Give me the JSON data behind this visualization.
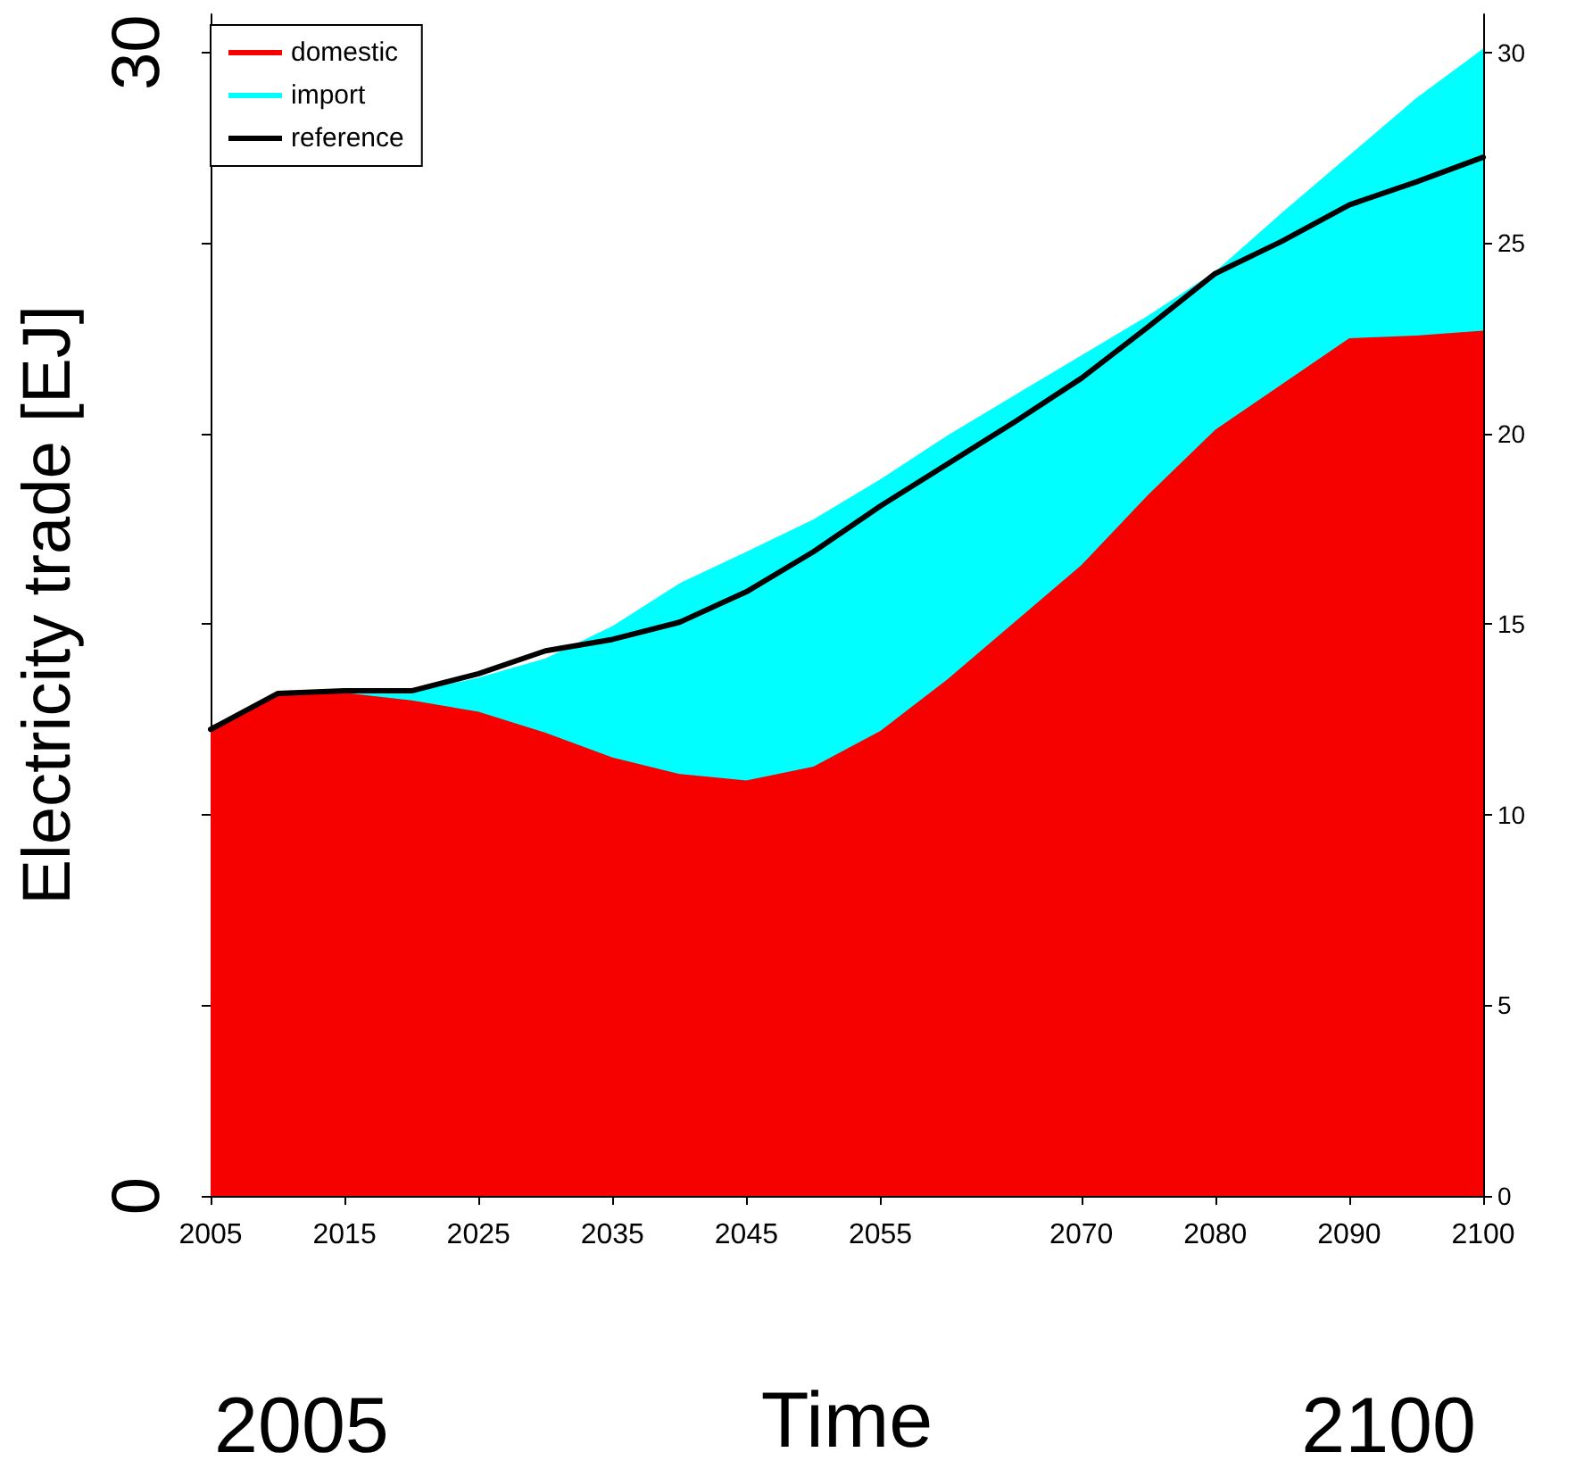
{
  "chart_data": {
    "type": "area",
    "stacked": true,
    "xlabel": "Time",
    "ylabel": "Electricity trade [EJ]",
    "x": [
      2005,
      2010,
      2015,
      2020,
      2025,
      2030,
      2035,
      2040,
      2045,
      2050,
      2055,
      2060,
      2065,
      2070,
      2075,
      2080,
      2085,
      2090,
      2095,
      2100
    ],
    "series": [
      {
        "name": "domestic",
        "color": "#f70000",
        "values": [
          12.24,
          13.18,
          13.2,
          13.0,
          12.7,
          12.15,
          11.5,
          11.07,
          10.9,
          11.26,
          12.2,
          13.55,
          15.05,
          16.55,
          18.4,
          20.1,
          21.3,
          22.5,
          22.57,
          22.7
        ]
      },
      {
        "name": "import",
        "color": "#00ffff",
        "values": [
          0,
          0,
          0,
          0.2,
          0.9,
          1.95,
          3.45,
          5.0,
          6.0,
          6.49,
          6.6,
          6.4,
          5.95,
          5.5,
          4.7,
          4.15,
          4.5,
          4.8,
          6.23,
          7.4
        ]
      },
      {
        "name": "reference",
        "type": "line",
        "color": "#000000",
        "values": [
          12.24,
          13.18,
          13.25,
          13.25,
          13.7,
          14.3,
          14.6,
          15.05,
          15.85,
          16.9,
          18.1,
          19.2,
          20.3,
          21.45,
          22.8,
          24.2,
          25.05,
          26.0,
          26.6,
          27.25
        ]
      }
    ],
    "xlim": [
      2005,
      2100
    ],
    "xticks": [
      2005,
      2015,
      2025,
      2035,
      2045,
      2055,
      2070,
      2080,
      2090,
      2100
    ],
    "ylim": [
      0,
      31
    ],
    "yticks": [
      0,
      {
        "value": 5,
        "label": null
      },
      {
        "value": 10,
        "label": null
      },
      {
        "value": 15,
        "label": null
      },
      {
        "value": 20,
        "label": null
      },
      {
        "value": 25,
        "label": null
      },
      30
    ],
    "y2lim": [
      0,
      31
    ],
    "y2ticks": [
      0,
      5,
      10,
      15,
      20,
      25,
      30
    ],
    "annotations": [
      "2005",
      "2100"
    ],
    "legend": "top left",
    "grid": false
  }
}
